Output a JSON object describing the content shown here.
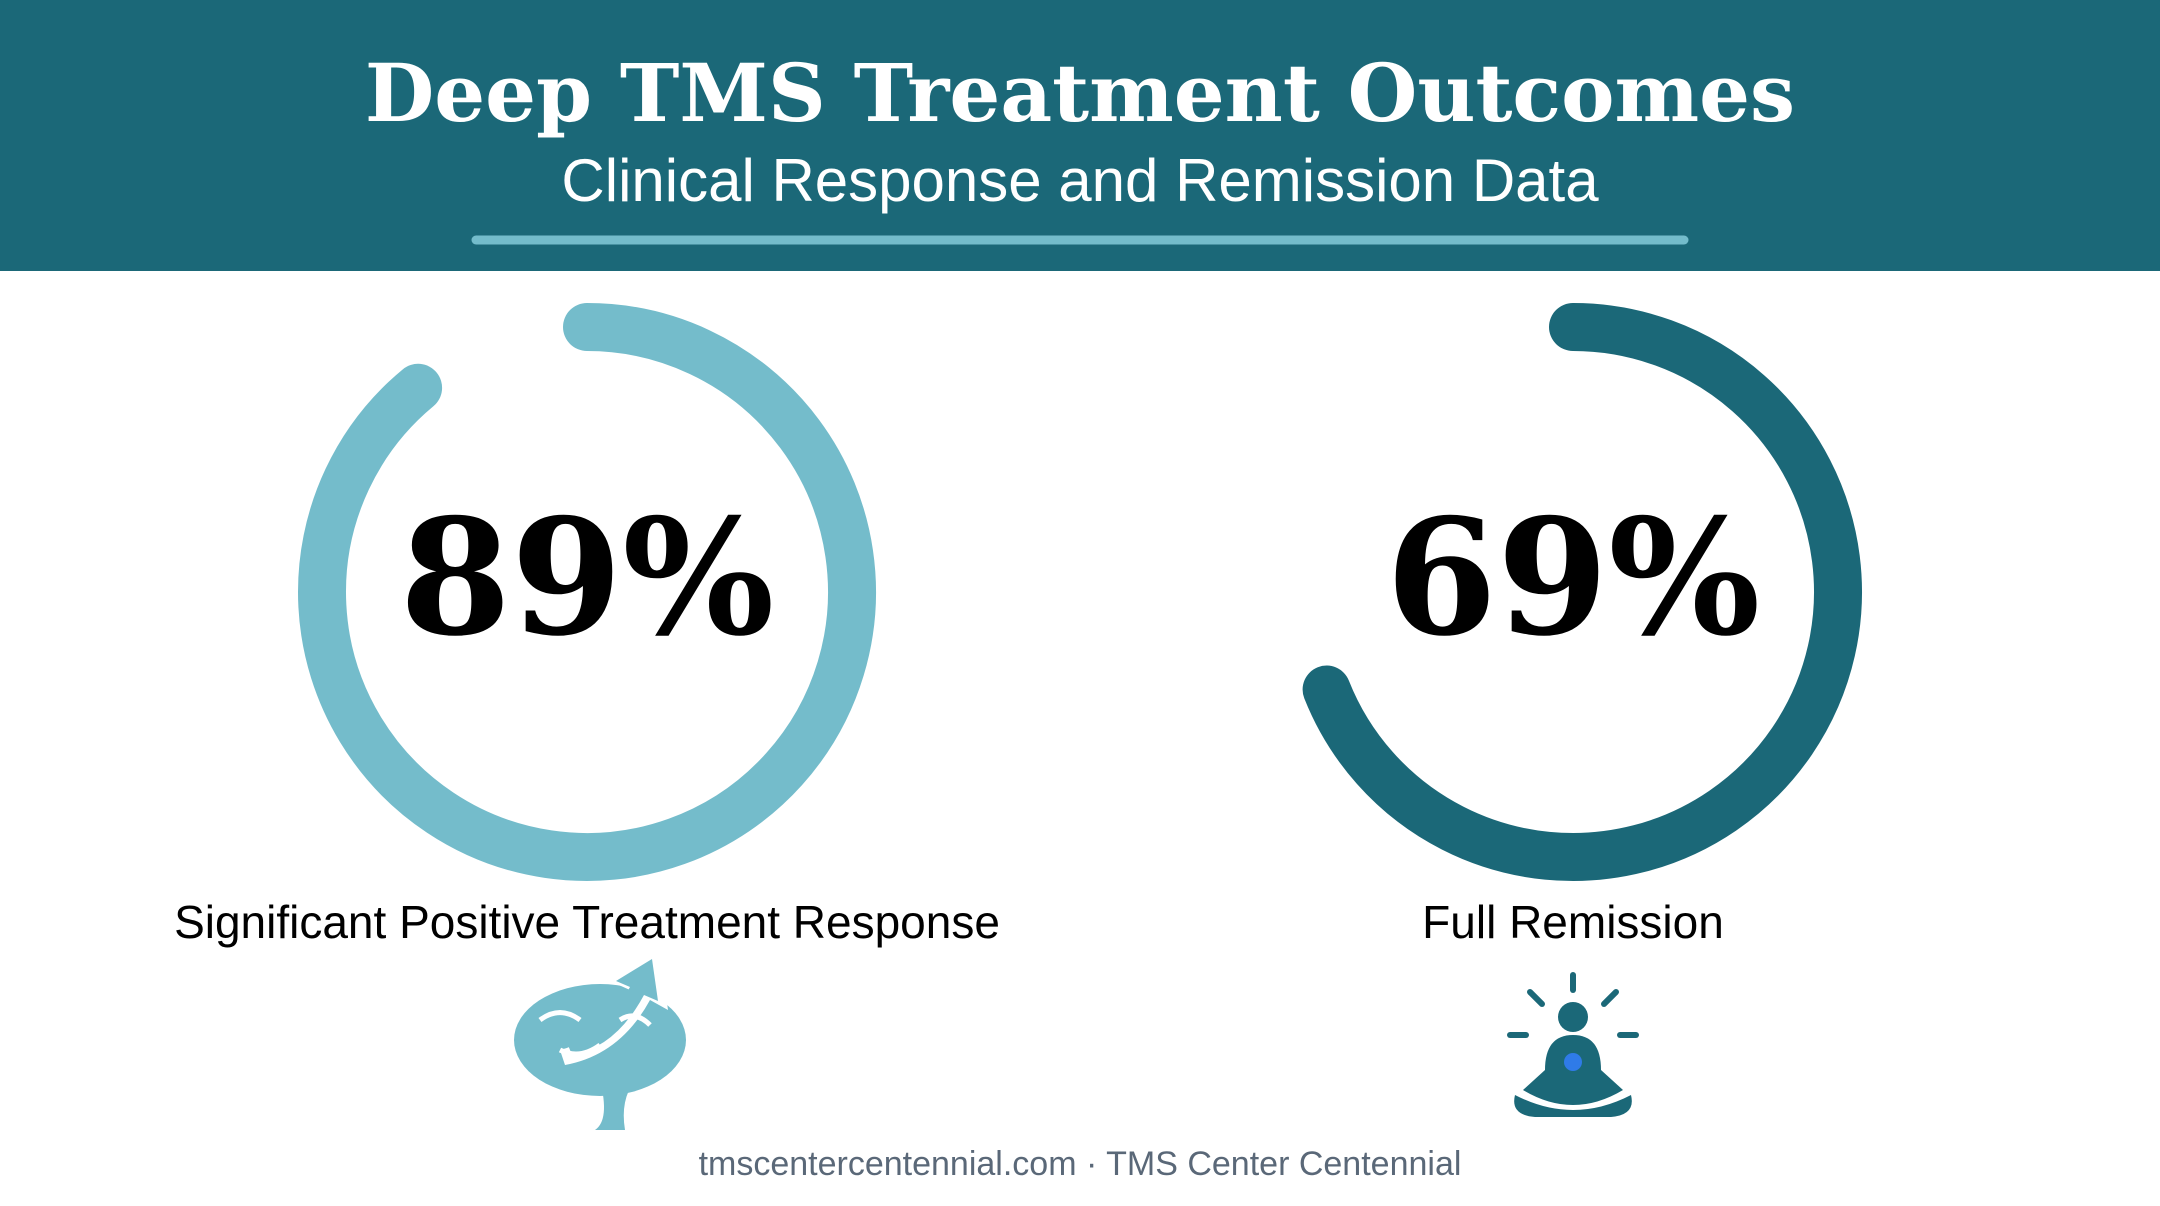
{
  "chart_data": {
    "type": "gauge",
    "title": "Deep TMS Treatment Outcomes",
    "subtitle": "Clinical Response and Remission Data",
    "categories": [
      "Significant Positive Treatment Response",
      "Full Remission"
    ],
    "values": [
      89,
      69
    ],
    "value_labels": [
      "89%",
      "69%"
    ],
    "colors": [
      "#74bccb",
      "#1b6878"
    ],
    "ylim": [
      0,
      100
    ]
  },
  "footer": "tmscentercentennial.com · TMS Center Centennial"
}
